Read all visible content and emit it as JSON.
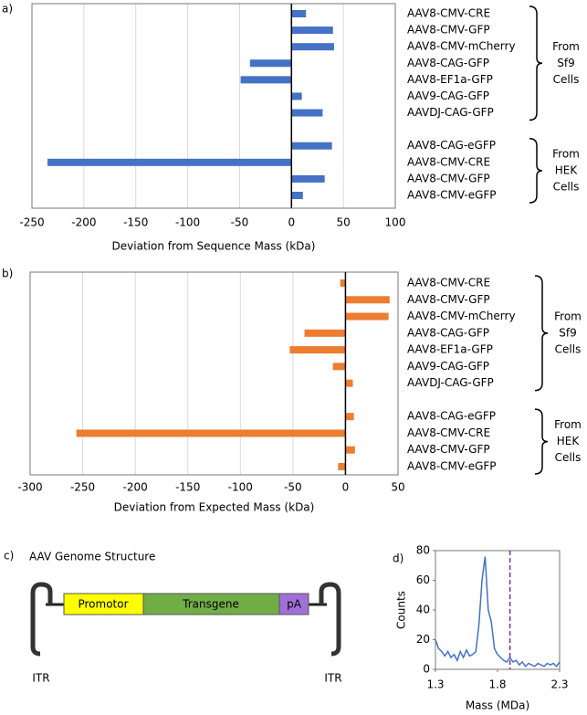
{
  "chart_data": [
    {
      "type": "hbar",
      "panel_label": "a)",
      "x_label": "Deviation from Sequence Mass (kDa)",
      "color": "#4472c4",
      "grid": true,
      "categories": [
        "AAV8-CMV-CRE",
        "AAV8-CMV-GFP",
        "AAV8-CMV-mCherry",
        "AAV8-CAG-GFP",
        "AAV8-EF1a-GFP",
        "AAV9-CAG-GFP",
        "AAVDJ-CAG-GFP",
        null,
        "AAV8-CAG-eGFP",
        "AAV8-CMV-CRE",
        "AAV8-CMV-GFP",
        "AAV8-CMV-eGFP"
      ],
      "values": [
        14,
        40,
        41,
        -40,
        -49,
        10,
        30,
        null,
        39,
        -235,
        32,
        11
      ],
      "groups": [
        [
          "From",
          "Sf9",
          "Cells"
        ],
        [
          "From",
          "HEK",
          "Cells"
        ]
      ],
      "xlim": [
        -250,
        100
      ],
      "xticks": [
        -250,
        -200,
        -150,
        -100,
        -50,
        0,
        50,
        100
      ]
    },
    {
      "type": "hbar",
      "panel_label": "b)",
      "x_label": "Deviation from Expected Mass (kDa)",
      "color": "#ed7d31",
      "grid": true,
      "categories": [
        "AAV8-CMV-CRE",
        "AAV8-CMV-GFP",
        "AAV8-CMV-mCherry",
        "AAV8-CAG-GFP",
        "AAV8-EF1a-GFP",
        "AAV9-CAG-GFP",
        "AAVDJ-CAG-GFP",
        null,
        "AAV8-CAG-eGFP",
        "AAV8-CMV-CRE",
        "AAV8-CMV-GFP",
        "AAV8-CMV-eGFP"
      ],
      "values": [
        -5,
        42,
        41,
        -39,
        -53,
        -12,
        7,
        null,
        8,
        -256,
        9,
        -7
      ],
      "groups": [
        [
          "From",
          "Sf9",
          "Cells"
        ],
        [
          "From",
          "HEK",
          "Cells"
        ]
      ],
      "xlim": [
        -300,
        50
      ],
      "xticks": [
        -300,
        -250,
        -200,
        -150,
        -100,
        -50,
        0,
        50
      ]
    },
    {
      "type": "line",
      "panel_label": "d)",
      "x_label": "Mass (MDa)",
      "y_label": "Counts",
      "color": "#4472c4",
      "x": [
        1.3,
        1.325,
        1.35,
        1.375,
        1.4,
        1.425,
        1.45,
        1.475,
        1.5,
        1.525,
        1.55,
        1.575,
        1.6,
        1.625,
        1.65,
        1.675,
        1.7,
        1.725,
        1.75,
        1.775,
        1.8,
        1.825,
        1.85,
        1.875,
        1.9,
        1.925,
        1.95,
        1.975,
        2.0,
        2.025,
        2.05,
        2.075,
        2.1,
        2.125,
        2.15,
        2.175,
        2.2,
        2.225,
        2.25,
        2.275,
        2.3
      ],
      "values": [
        20,
        14,
        12,
        9,
        12,
        8,
        10,
        6,
        12,
        8,
        13,
        9,
        10,
        12,
        30,
        60,
        76,
        40,
        32,
        14,
        10,
        8,
        6,
        5,
        8,
        5,
        6,
        3,
        5,
        2,
        4,
        3,
        2,
        4,
        3,
        2,
        4,
        3,
        4,
        2,
        5
      ],
      "annotation_line": {
        "x": 1.9,
        "color": "#7030a0"
      },
      "xlim": [
        1.3,
        2.3
      ],
      "xticks": [
        1.3,
        1.8,
        2.3
      ],
      "ylim": [
        0,
        80
      ],
      "yticks": [
        0,
        20,
        40,
        60,
        80
      ]
    }
  ],
  "genome_diagram": {
    "panel_label": "c)",
    "title": "AAV Genome Structure",
    "promotor": "Promotor",
    "transgene": "Transgene",
    "polya": "pA",
    "itr_left": "ITR",
    "itr_right": "ITR"
  }
}
